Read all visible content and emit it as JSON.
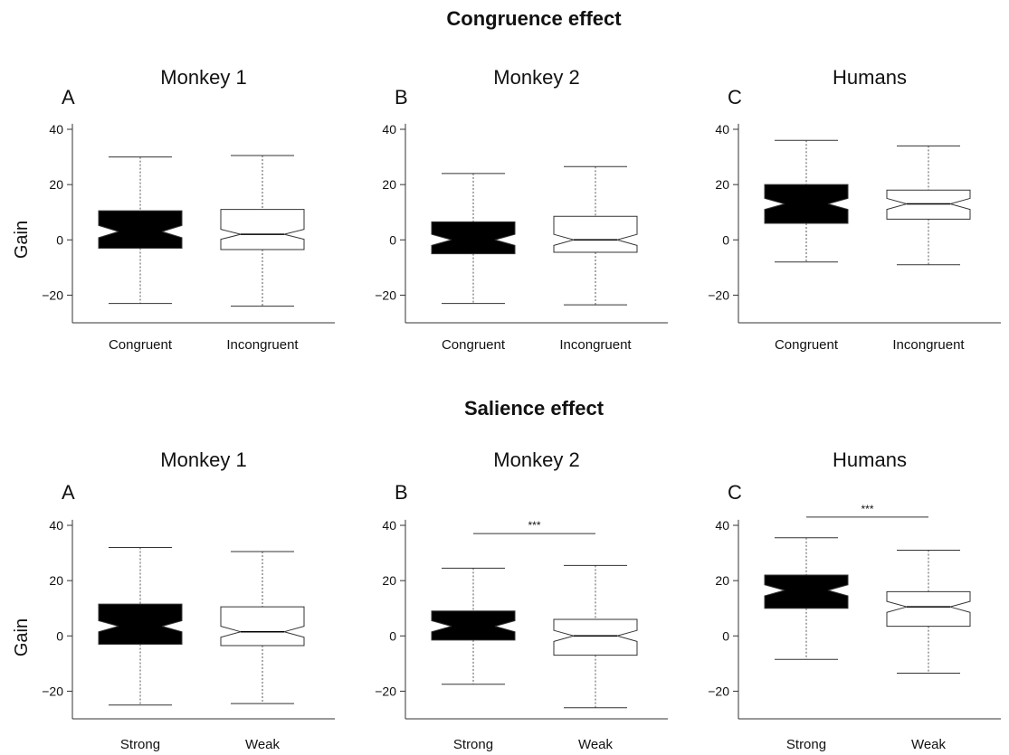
{
  "sections": [
    {
      "title": "Congruence effect",
      "categories": [
        "Congruent",
        "Incongruent"
      ],
      "ylabel": "Gain"
    },
    {
      "title": "Salience effect",
      "categories": [
        "Strong",
        "Weak"
      ],
      "ylabel": "Gain"
    }
  ],
  "colors": {
    "filled": "#000000",
    "open": "#ffffff",
    "stroke": "#333333"
  },
  "chart_data": [
    {
      "type": "boxplot",
      "section": "Congruence effect",
      "letter": "A",
      "title": "Monkey 1",
      "ylabel": "Gain",
      "ylim": [
        -30,
        42
      ],
      "yticks": [
        -20,
        0,
        20,
        40
      ],
      "categories": [
        "Congruent",
        "Incongruent"
      ],
      "boxes": [
        {
          "category": "Congruent",
          "fill": "filled",
          "whisker_low": -23,
          "q1": -3,
          "median": 3,
          "q3": 10.5,
          "whisker_high": 30,
          "notch": [
            0.8,
            5.2
          ]
        },
        {
          "category": "Incongruent",
          "fill": "open",
          "whisker_low": -24,
          "q1": -3.5,
          "median": 2,
          "q3": 11,
          "whisker_high": 30.5,
          "notch": [
            0.2,
            3.8
          ]
        }
      ],
      "significance": null
    },
    {
      "type": "boxplot",
      "section": "Congruence effect",
      "letter": "B",
      "title": "Monkey 2",
      "ylabel": "",
      "ylim": [
        -30,
        42
      ],
      "yticks": [
        -20,
        0,
        20,
        40
      ],
      "categories": [
        "Congruent",
        "Incongruent"
      ],
      "boxes": [
        {
          "category": "Congruent",
          "fill": "filled",
          "whisker_low": -23,
          "q1": -5,
          "median": 0,
          "q3": 6.5,
          "whisker_high": 24,
          "notch": [
            -2,
            2
          ]
        },
        {
          "category": "Incongruent",
          "fill": "open",
          "whisker_low": -23.5,
          "q1": -4.5,
          "median": 0,
          "q3": 8.5,
          "whisker_high": 26.5,
          "notch": [
            -2,
            2
          ]
        }
      ],
      "significance": null
    },
    {
      "type": "boxplot",
      "section": "Congruence effect",
      "letter": "C",
      "title": "Humans",
      "ylabel": "",
      "ylim": [
        -30,
        42
      ],
      "yticks": [
        -20,
        0,
        20,
        40
      ],
      "categories": [
        "Congruent",
        "Incongruent"
      ],
      "boxes": [
        {
          "category": "Congruent",
          "fill": "filled",
          "whisker_low": -8,
          "q1": 6,
          "median": 13,
          "q3": 20,
          "whisker_high": 36,
          "notch": [
            11,
            15
          ]
        },
        {
          "category": "Incongruent",
          "fill": "open",
          "whisker_low": -9,
          "q1": 7.5,
          "median": 13,
          "q3": 18,
          "whisker_high": 34,
          "notch": [
            11,
            15
          ]
        }
      ],
      "significance": null
    },
    {
      "type": "boxplot",
      "section": "Salience effect",
      "letter": "A",
      "title": "Monkey 1",
      "ylabel": "Gain",
      "ylim": [
        -30,
        42
      ],
      "yticks": [
        -20,
        0,
        20,
        40
      ],
      "categories": [
        "Strong",
        "Weak"
      ],
      "boxes": [
        {
          "category": "Strong",
          "fill": "filled",
          "whisker_low": -25,
          "q1": -3,
          "median": 3.5,
          "q3": 11.5,
          "whisker_high": 32,
          "notch": [
            1.5,
            5.5
          ]
        },
        {
          "category": "Weak",
          "fill": "open",
          "whisker_low": -24.5,
          "q1": -3.5,
          "median": 1.5,
          "q3": 10.5,
          "whisker_high": 30.5,
          "notch": [
            -0.5,
            3.5
          ]
        }
      ],
      "significance": null
    },
    {
      "type": "boxplot",
      "section": "Salience effect",
      "letter": "B",
      "title": "Monkey 2",
      "ylabel": "",
      "ylim": [
        -30,
        42
      ],
      "yticks": [
        -20,
        0,
        20,
        40
      ],
      "categories": [
        "Strong",
        "Weak"
      ],
      "boxes": [
        {
          "category": "Strong",
          "fill": "filled",
          "whisker_low": -17.5,
          "q1": -1.5,
          "median": 3.5,
          "q3": 9,
          "whisker_high": 24.5,
          "notch": [
            1.5,
            5.5
          ]
        },
        {
          "category": "Weak",
          "fill": "open",
          "whisker_low": -26,
          "q1": -7,
          "median": 0,
          "q3": 6,
          "whisker_high": 25.5,
          "notch": [
            -2,
            2
          ]
        }
      ],
      "significance": {
        "label": "***",
        "y": 37
      }
    },
    {
      "type": "boxplot",
      "section": "Salience effect",
      "letter": "C",
      "title": "Humans",
      "ylabel": "",
      "ylim": [
        -30,
        42
      ],
      "yticks": [
        -20,
        0,
        20,
        40
      ],
      "categories": [
        "Strong",
        "Weak"
      ],
      "boxes": [
        {
          "category": "Strong",
          "fill": "filled",
          "whisker_low": -8.5,
          "q1": 10,
          "median": 16.5,
          "q3": 22,
          "whisker_high": 35.5,
          "notch": [
            14.5,
            18.5
          ]
        },
        {
          "category": "Weak",
          "fill": "open",
          "whisker_low": -13.5,
          "q1": 3.5,
          "median": 10.5,
          "q3": 16,
          "whisker_high": 31,
          "notch": [
            8.5,
            12.5
          ]
        }
      ],
      "significance": {
        "label": "***",
        "y": 43
      }
    }
  ]
}
